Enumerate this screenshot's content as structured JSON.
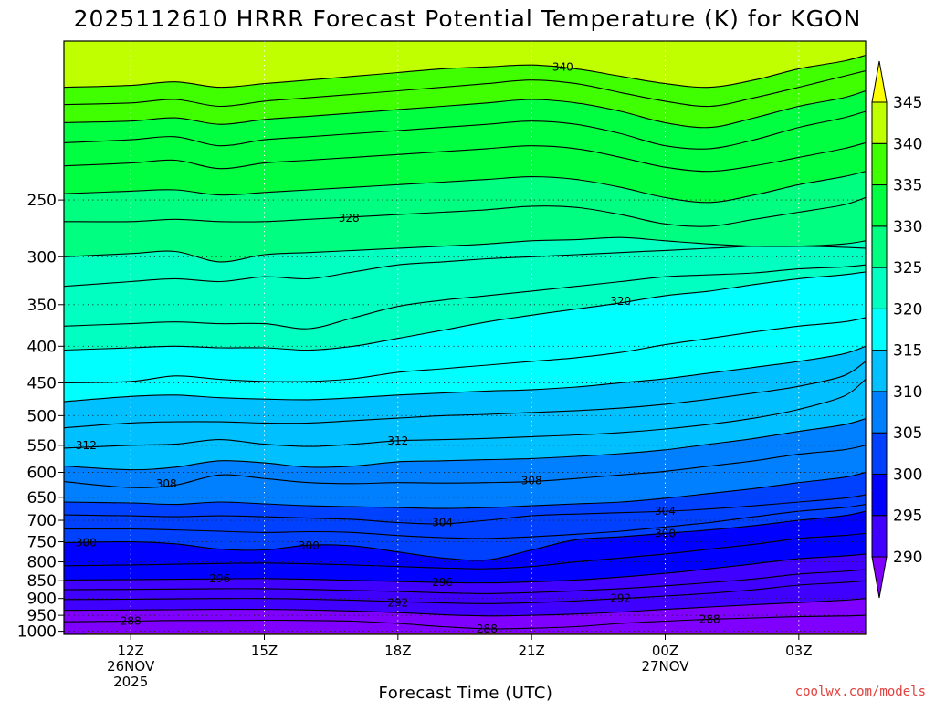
{
  "chart_data": {
    "type": "heatmap",
    "subtype": "filled-contour time-height cross-section",
    "title": "2025112610 HRRR Forecast Potential Temperature (K) for KGON",
    "xlabel": "Forecast Time (UTC)",
    "ylabel": "",
    "credit": "coolwx.com/models",
    "y_axis": {
      "scale": "log",
      "reversed": true,
      "range": [
        1010,
        150
      ],
      "units": "hPa",
      "ticks": [
        250,
        300,
        350,
        400,
        450,
        500,
        550,
        600,
        650,
        700,
        750,
        800,
        850,
        900,
        950,
        1000
      ]
    },
    "x_axis": {
      "units": "forecast hour (init 2025112610)",
      "range": [
        10.5,
        28.5
      ],
      "ticks": [
        {
          "hour": 12,
          "line1": "12Z",
          "line2": "26NOV",
          "line3": "2025"
        },
        {
          "hour": 15,
          "line1": "15Z",
          "line2": "",
          "line3": ""
        },
        {
          "hour": 18,
          "line1": "18Z",
          "line2": "",
          "line3": ""
        },
        {
          "hour": 21,
          "line1": "21Z",
          "line2": "",
          "line3": ""
        },
        {
          "hour": 24,
          "line1": "00Z",
          "line2": "27NOV",
          "line3": ""
        },
        {
          "hour": 27,
          "line1": "03Z",
          "line2": "",
          "line3": ""
        }
      ]
    },
    "grid": true,
    "grid_style": "dotted",
    "colorbar": {
      "position": "right",
      "levels": [
        290,
        295,
        300,
        305,
        310,
        315,
        320,
        325,
        330,
        335,
        340,
        345
      ],
      "tick_labels": [
        "290",
        "295",
        "300",
        "305",
        "310",
        "315",
        "320",
        "325",
        "330",
        "335",
        "340",
        "345"
      ],
      "colors": [
        "#8000ff",
        "#4000ff",
        "#0000ff",
        "#0040ff",
        "#0080ff",
        "#00c0ff",
        "#00ffff",
        "#00ffc0",
        "#00ff80",
        "#00ff40",
        "#40ff00",
        "#c0ff00",
        "#ffff00"
      ],
      "extend": "both"
    },
    "ground_color": "#a0522d",
    "hours": [
      10.5,
      12,
      13,
      14,
      15,
      16,
      17,
      18,
      19,
      20,
      21,
      22,
      23,
      24,
      25,
      26,
      27,
      28,
      28.5
    ],
    "contour_interval_K": 2,
    "contours": [
      {
        "value": 288,
        "p": [
          970,
          968,
          966,
          966,
          965,
          966,
          968,
          975,
          985,
          992,
          990,
          985,
          975,
          968,
          962,
          958,
          954,
          952,
          950
        ]
      },
      {
        "value": 290,
        "p": [
          935,
          934,
          933,
          932,
          932,
          934,
          937,
          942,
          948,
          952,
          950,
          946,
          940,
          932,
          925,
          918,
          912,
          905,
          900
        ]
      },
      {
        "value": 292,
        "p": [
          903,
          902,
          901,
          900,
          900,
          902,
          905,
          909,
          913,
          915,
          912,
          907,
          900,
          893,
          885,
          875,
          862,
          855,
          850
        ]
      },
      {
        "value": 294,
        "p": [
          875,
          874,
          873,
          872,
          872,
          874,
          877,
          880,
          884,
          886,
          883,
          878,
          872,
          864,
          855,
          845,
          832,
          825,
          820
        ]
      },
      {
        "value": 296,
        "p": [
          848,
          847,
          846,
          845,
          844,
          846,
          849,
          852,
          855,
          856,
          853,
          848,
          840,
          830,
          818,
          805,
          792,
          785,
          780
        ]
      },
      {
        "value": 298,
        "p": [
          810,
          808,
          806,
          804,
          803,
          805,
          808,
          812,
          816,
          818,
          812,
          800,
          790,
          780,
          768,
          756,
          742,
          735,
          730
        ]
      },
      {
        "value": 300,
        "p": [
          752,
          750,
          755,
          768,
          770,
          758,
          760,
          775,
          790,
          795,
          770,
          745,
          738,
          730,
          722,
          712,
          700,
          690,
          680
        ]
      },
      {
        "value": 302,
        "p": [
          720,
          720,
          722,
          725,
          728,
          726,
          728,
          735,
          740,
          742,
          738,
          732,
          725,
          715,
          705,
          692,
          680,
          672,
          665
        ]
      },
      {
        "value": 304,
        "p": [
          688,
          690,
          692,
          690,
          692,
          695,
          698,
          705,
          708,
          700,
          690,
          686,
          683,
          680,
          675,
          668,
          660,
          652,
          645
        ]
      },
      {
        "value": 306,
        "p": [
          660,
          662,
          665,
          660,
          664,
          668,
          670,
          672,
          674,
          672,
          668,
          664,
          660,
          652,
          642,
          632,
          620,
          610,
          600
        ]
      },
      {
        "value": 308,
        "p": [
          618,
          630,
          625,
          605,
          612,
          620,
          622,
          620,
          621,
          620,
          618,
          612,
          605,
          598,
          588,
          578,
          566,
          558,
          550
        ]
      },
      {
        "value": 310,
        "p": [
          588,
          595,
          590,
          578,
          582,
          590,
          588,
          580,
          578,
          576,
          574,
          570,
          565,
          558,
          548,
          538,
          526,
          515,
          505
        ]
      },
      {
        "value": 312,
        "p": [
          555,
          550,
          548,
          540,
          548,
          552,
          548,
          542,
          540,
          538,
          535,
          532,
          528,
          522,
          514,
          504,
          490,
          470,
          445
        ]
      },
      {
        "value": 314,
        "p": [
          520,
          512,
          510,
          510,
          512,
          512,
          508,
          504,
          500,
          498,
          495,
          492,
          488,
          482,
          474,
          465,
          455,
          440,
          420
        ]
      },
      {
        "value": 316,
        "p": [
          478,
          470,
          468,
          472,
          474,
          475,
          472,
          468,
          465,
          462,
          460,
          456,
          450,
          444,
          436,
          428,
          420,
          410,
          400
        ]
      },
      {
        "value": 318,
        "p": [
          450,
          448,
          440,
          445,
          448,
          448,
          444,
          435,
          430,
          425,
          420,
          415,
          408,
          398,
          390,
          382,
          375,
          370,
          365
        ]
      },
      {
        "value": 320,
        "p": [
          405,
          402,
          400,
          402,
          402,
          405,
          400,
          390,
          380,
          370,
          362,
          355,
          348,
          340,
          335,
          328,
          322,
          318,
          315
        ]
      },
      {
        "value": 322,
        "p": [
          375,
          372,
          370,
          372,
          372,
          378,
          365,
          352,
          345,
          340,
          335,
          330,
          325,
          320,
          318,
          316,
          312,
          310,
          308
        ]
      },
      {
        "value": 324,
        "p": [
          330,
          325,
          322,
          325,
          320,
          322,
          315,
          308,
          305,
          302,
          300,
          298,
          296,
          294,
          292,
          290,
          290,
          291,
          292
        ]
      },
      {
        "value": 326,
        "p": [
          300,
          297,
          295,
          305,
          298,
          296,
          294,
          292,
          290,
          288,
          285,
          284,
          282,
          285,
          288,
          290,
          290,
          288,
          285
        ]
      },
      {
        "value": 328,
        "p": [
          268,
          268,
          266,
          268,
          268,
          266,
          264,
          262,
          260,
          258,
          255,
          256,
          262,
          270,
          272,
          266,
          260,
          254,
          248
        ]
      },
      {
        "value": 330,
        "p": [
          245,
          243,
          242,
          246,
          244,
          242,
          240,
          238,
          236,
          234,
          232,
          234,
          240,
          248,
          252,
          246,
          238,
          232,
          228
        ]
      },
      {
        "value": 332,
        "p": [
          224,
          222,
          220,
          226,
          222,
          220,
          218,
          216,
          214,
          212,
          210,
          212,
          218,
          225,
          228,
          224,
          218,
          212,
          208
        ]
      },
      {
        "value": 334,
        "p": [
          208,
          206,
          204,
          210,
          206,
          204,
          202,
          200,
          198,
          196,
          194,
          196,
          202,
          210,
          212,
          206,
          198,
          192,
          188
        ]
      },
      {
        "value": 336,
        "p": [
          195,
          194,
          192,
          196,
          193,
          191,
          189,
          187,
          185,
          183,
          181,
          183,
          188,
          195,
          198,
          192,
          185,
          180,
          176
        ]
      },
      {
        "value": 338,
        "p": [
          184,
          183,
          181,
          185,
          182,
          180,
          178,
          176,
          174,
          172,
          170,
          172,
          177,
          182,
          185,
          180,
          174,
          168,
          165
        ]
      },
      {
        "value": 340,
        "p": [
          174,
          173,
          171,
          174,
          172,
          170,
          168,
          166,
          164,
          163,
          162,
          164,
          168,
          172,
          174,
          170,
          164,
          160,
          157
        ]
      }
    ],
    "contour_labels": [
      {
        "text": "340",
        "hour": 21.7,
        "p": 163
      },
      {
        "text": "328",
        "hour": 16.9,
        "p": 265
      },
      {
        "text": "320",
        "hour": 23.0,
        "p": 346
      },
      {
        "text": "312",
        "hour": 11.0,
        "p": 550
      },
      {
        "text": "312",
        "hour": 18.0,
        "p": 542
      },
      {
        "text": "308",
        "hour": 12.8,
        "p": 622
      },
      {
        "text": "308",
        "hour": 21.0,
        "p": 616
      },
      {
        "text": "304",
        "hour": 19.0,
        "p": 705
      },
      {
        "text": "304",
        "hour": 24.0,
        "p": 680
      },
      {
        "text": "300",
        "hour": 11.0,
        "p": 752
      },
      {
        "text": "300",
        "hour": 16.0,
        "p": 760
      },
      {
        "text": "300",
        "hour": 24.0,
        "p": 730
      },
      {
        "text": "296",
        "hour": 14.0,
        "p": 845
      },
      {
        "text": "296",
        "hour": 19.0,
        "p": 855
      },
      {
        "text": "292",
        "hour": 18.0,
        "p": 913
      },
      {
        "text": "292",
        "hour": 23.0,
        "p": 900
      },
      {
        "text": "288",
        "hour": 12.0,
        "p": 968
      },
      {
        "text": "288",
        "hour": 20.0,
        "p": 992
      },
      {
        "text": "288",
        "hour": 25.0,
        "p": 962
      }
    ]
  }
}
